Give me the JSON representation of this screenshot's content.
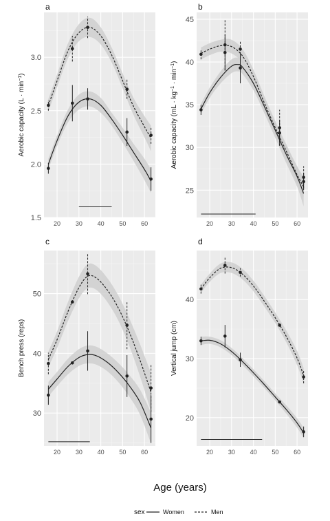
{
  "chart_data": {
    "type": "line",
    "xlabel": "Age (years)",
    "legend": {
      "title": "sex",
      "position": "bottom",
      "entries": [
        "Women",
        "Men"
      ]
    },
    "colors": {
      "line": "#222222",
      "band": "#cfcfcf",
      "panel_bg": "#ebebeb",
      "grid_major": "#ffffff",
      "grid_minor": "#f5f5f5"
    },
    "panels": [
      {
        "tag": "a",
        "ylabel": "Aerobic capacity (L · min",
        "ylabel_sup": "−1",
        "ylabel_end": ")",
        "xlim": [
          14,
          65
        ],
        "ylim": [
          1.5,
          3.42
        ],
        "xticks": [
          20,
          30,
          40,
          50,
          60
        ],
        "yticks": [
          1.5,
          2.0,
          2.5,
          3.0
        ],
        "ytick_labels": [
          "1.5",
          "2.0",
          "2.5",
          "3.0"
        ],
        "minor_yticks": [
          1.75,
          2.25,
          2.75,
          3.25
        ],
        "hbar": [
          30,
          45
        ],
        "hbar_y": 1.6,
        "series": [
          {
            "name": "Women",
            "dash": false,
            "curve": [
              [
                16,
                2.0
              ],
              [
                20,
                2.22
              ],
              [
                25,
                2.45
              ],
              [
                30,
                2.58
              ],
              [
                35,
                2.61
              ],
              [
                40,
                2.55
              ],
              [
                45,
                2.42
              ],
              [
                50,
                2.27
              ],
              [
                55,
                2.11
              ],
              [
                60,
                1.95
              ],
              [
                63,
                1.84
              ]
            ],
            "band": [
              0.05,
              0.05,
              0.06,
              0.07,
              0.07,
              0.07,
              0.06,
              0.07,
              0.08,
              0.1,
              0.11
            ],
            "points": [
              [
                16,
                1.96
              ],
              [
                27,
                2.57
              ],
              [
                34,
                2.61
              ],
              [
                52,
                2.3
              ],
              [
                63,
                1.86
              ]
            ],
            "err": [
              0.05,
              0.17,
              0.1,
              0.13,
              0.11
            ]
          },
          {
            "name": "Men",
            "dash": true,
            "curve": [
              [
                16,
                2.55
              ],
              [
                20,
                2.78
              ],
              [
                25,
                3.06
              ],
              [
                30,
                3.23
              ],
              [
                35,
                3.28
              ],
              [
                40,
                3.2
              ],
              [
                45,
                3.02
              ],
              [
                50,
                2.78
              ],
              [
                55,
                2.54
              ],
              [
                60,
                2.35
              ],
              [
                63,
                2.24
              ]
            ],
            "band": [
              0.06,
              0.06,
              0.07,
              0.08,
              0.09,
              0.08,
              0.07,
              0.07,
              0.08,
              0.1,
              0.12
            ],
            "points": [
              [
                16,
                2.55
              ],
              [
                27,
                3.08
              ],
              [
                34,
                3.28
              ],
              [
                52,
                2.7
              ],
              [
                63,
                2.27
              ]
            ],
            "err": [
              0.05,
              0.12,
              0.1,
              0.09,
              0.08
            ]
          }
        ]
      },
      {
        "tag": "b",
        "ylabel": "Aerobic capacity (mL · kg",
        "ylabel_sup": "−1",
        "ylabel_end": " · min",
        "ylabel_sup2": "−1",
        "ylabel_end2": ")",
        "xlim": [
          14,
          65
        ],
        "ylim": [
          21.8,
          45.8
        ],
        "xticks": [
          20,
          30,
          40,
          50,
          60
        ],
        "yticks": [
          25,
          30,
          35,
          40,
          45
        ],
        "ytick_labels": [
          "25",
          "30",
          "35",
          "40",
          "45"
        ],
        "minor_yticks": [
          27.5,
          32.5,
          37.5,
          42.5
        ],
        "hbar": [
          16,
          41
        ],
        "hbar_y": 22.2,
        "series": [
          {
            "name": "Women",
            "dash": false,
            "curve": [
              [
                16,
                34.5
              ],
              [
                20,
                36.4
              ],
              [
                25,
                38.2
              ],
              [
                30,
                39.5
              ],
              [
                33,
                39.7
              ],
              [
                35,
                39.4
              ],
              [
                40,
                37.5
              ],
              [
                45,
                34.8
              ],
              [
                50,
                32.0
              ],
              [
                55,
                29.2
              ],
              [
                60,
                26.6
              ],
              [
                63,
                24.6
              ]
            ],
            "band": [
              0.6,
              0.6,
              0.7,
              0.8,
              0.8,
              0.8,
              0.8,
              0.8,
              0.9,
              1.0,
              1.2,
              1.5
            ],
            "points": [
              [
                16,
                34.4
              ],
              [
                27,
                41.1
              ],
              [
                34,
                39.3
              ],
              [
                52,
                31.7
              ],
              [
                63,
                26.0
              ]
            ],
            "err": [
              0.6,
              2.1,
              1.8,
              1.5,
              1.0
            ]
          },
          {
            "name": "Men",
            "dash": true,
            "curve": [
              [
                16,
                41.0
              ],
              [
                20,
                41.5
              ],
              [
                25,
                41.9
              ],
              [
                30,
                41.8
              ],
              [
                35,
                40.7
              ],
              [
                40,
                38.3
              ],
              [
                45,
                35.2
              ],
              [
                50,
                32.3
              ],
              [
                55,
                29.6
              ],
              [
                60,
                26.8
              ],
              [
                63,
                25.4
              ]
            ],
            "band": [
              0.7,
              0.7,
              0.7,
              0.8,
              0.8,
              0.8,
              0.8,
              0.8,
              0.8,
              1.0,
              1.2
            ],
            "points": [
              [
                16,
                40.9
              ],
              [
                27,
                42.0
              ],
              [
                34,
                41.5
              ],
              [
                52,
                32.3
              ],
              [
                63,
                26.5
              ]
            ],
            "err": [
              0.6,
              3.0,
              1.0,
              2.1,
              1.3
            ]
          }
        ]
      },
      {
        "tag": "c",
        "ylabel": "Bench press (reps)",
        "xlim": [
          14,
          65
        ],
        "ylim": [
          24.5,
          57.2
        ],
        "xticks": [
          20,
          30,
          40,
          50,
          60
        ],
        "yticks": [
          30,
          40,
          50
        ],
        "ytick_labels": [
          "30",
          "40",
          "50"
        ],
        "minor_yticks": [
          25,
          35,
          45,
          55
        ],
        "hbar": [
          16,
          35
        ],
        "hbar_y": 25.2,
        "series": [
          {
            "name": "Women",
            "dash": false,
            "curve": [
              [
                16,
                34.0
              ],
              [
                20,
                35.7
              ],
              [
                25,
                37.8
              ],
              [
                30,
                39.3
              ],
              [
                34,
                39.8
              ],
              [
                38,
                39.6
              ],
              [
                43,
                38.5
              ],
              [
                48,
                36.8
              ],
              [
                53,
                34.6
              ],
              [
                58,
                31.8
              ],
              [
                63,
                27.5
              ]
            ],
            "band": [
              1.2,
              1.2,
              1.3,
              1.4,
              1.5,
              1.5,
              1.5,
              1.6,
              1.8,
              2.1,
              2.6
            ],
            "points": [
              [
                16,
                33.0
              ],
              [
                27,
                null
              ],
              [
                34,
                40.4
              ],
              [
                52,
                36.2
              ],
              [
                63,
                29.0
              ]
            ],
            "err": [
              1.6,
              0,
              3.3,
              3.5,
              4.0
            ]
          },
          {
            "name": "Men",
            "dash": true,
            "curve": [
              [
                16,
                39.0
              ],
              [
                20,
                42.3
              ],
              [
                25,
                47.0
              ],
              [
                30,
                51.0
              ],
              [
                34,
                52.9
              ],
              [
                38,
                52.6
              ],
              [
                43,
                50.6
              ],
              [
                48,
                47.6
              ],
              [
                53,
                43.6
              ],
              [
                58,
                38.8
              ],
              [
                63,
                33.5
              ]
            ],
            "band": [
              1.3,
              1.4,
              1.6,
              1.8,
              2.0,
              2.0,
              2.0,
              2.1,
              2.3,
              2.7,
              3.2
            ],
            "points": [
              [
                16,
                38.3
              ],
              [
                27,
                null
              ],
              [
                34,
                53.3
              ],
              [
                52,
                44.7
              ],
              [
                63,
                34.2
              ]
            ],
            "err": [
              1.8,
              0,
              3.4,
              4.0,
              4.0
            ]
          }
        ]
      },
      {
        "tag": "d",
        "ylabel": "Vertical jump (cm)",
        "xlim": [
          14,
          65
        ],
        "ylim": [
          15.2,
          48.3
        ],
        "xticks": [
          20,
          30,
          40,
          50,
          60
        ],
        "yticks": [
          20,
          30,
          40
        ],
        "ytick_labels": [
          "20",
          "30",
          "40"
        ],
        "minor_yticks": [
          25,
          35,
          45
        ],
        "hbar": [
          16,
          44
        ],
        "hbar_y": 16.3,
        "series": [
          {
            "name": "Women",
            "dash": false,
            "curve": [
              [
                16,
                33.0
              ],
              [
                20,
                33.1
              ],
              [
                25,
                32.5
              ],
              [
                30,
                31.2
              ],
              [
                35,
                29.5
              ],
              [
                40,
                27.6
              ],
              [
                45,
                25.6
              ],
              [
                50,
                23.5
              ],
              [
                55,
                21.4
              ],
              [
                60,
                19.1
              ],
              [
                63,
                17.4
              ]
            ],
            "band": [
              0.7,
              0.6,
              0.6,
              0.6,
              0.6,
              0.6,
              0.6,
              0.6,
              0.7,
              0.8,
              0.9
            ],
            "points": [
              [
                16,
                33.0
              ],
              [
                27,
                33.8
              ],
              [
                34,
                29.8
              ],
              [
                52,
                null
              ],
              [
                63,
                17.6
              ]
            ],
            "err": [
              0.7,
              1.9,
              1.2,
              0,
              0.9
            ]
          },
          {
            "name": "Men",
            "dash": true,
            "curve": [
              [
                16,
                41.8
              ],
              [
                20,
                43.7
              ],
              [
                25,
                45.3
              ],
              [
                30,
                45.4
              ],
              [
                35,
                44.3
              ],
              [
                40,
                42.3
              ],
              [
                45,
                39.7
              ],
              [
                50,
                36.9
              ],
              [
                55,
                33.8
              ],
              [
                60,
                30.1
              ],
              [
                63,
                27.1
              ]
            ],
            "band": [
              0.7,
              0.7,
              0.8,
              0.9,
              0.9,
              0.9,
              0.9,
              0.9,
              1.0,
              1.2,
              1.3
            ],
            "points": [
              [
                16,
                41.8
              ],
              [
                27,
                45.8
              ],
              [
                34,
                44.6
              ],
              [
                52,
                null
              ],
              [
                63,
                26.9
              ]
            ],
            "err": [
              0.8,
              1.4,
              0.7,
              0,
              1.1
            ]
          }
        ]
      }
    ]
  }
}
